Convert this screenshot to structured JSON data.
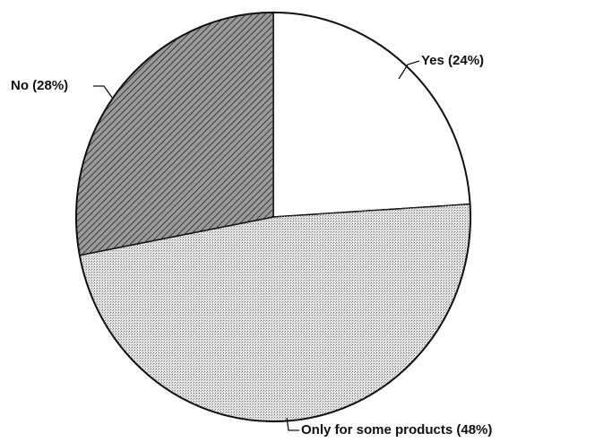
{
  "chart_data": {
    "type": "pie",
    "categories": [
      "Yes (24%)",
      "Only for some products (48%)",
      "No (28%)"
    ],
    "values": [
      24,
      48,
      28
    ],
    "colors": [
      "#ffffff",
      "#e4e4e4",
      "#9a9a9a"
    ]
  }
}
